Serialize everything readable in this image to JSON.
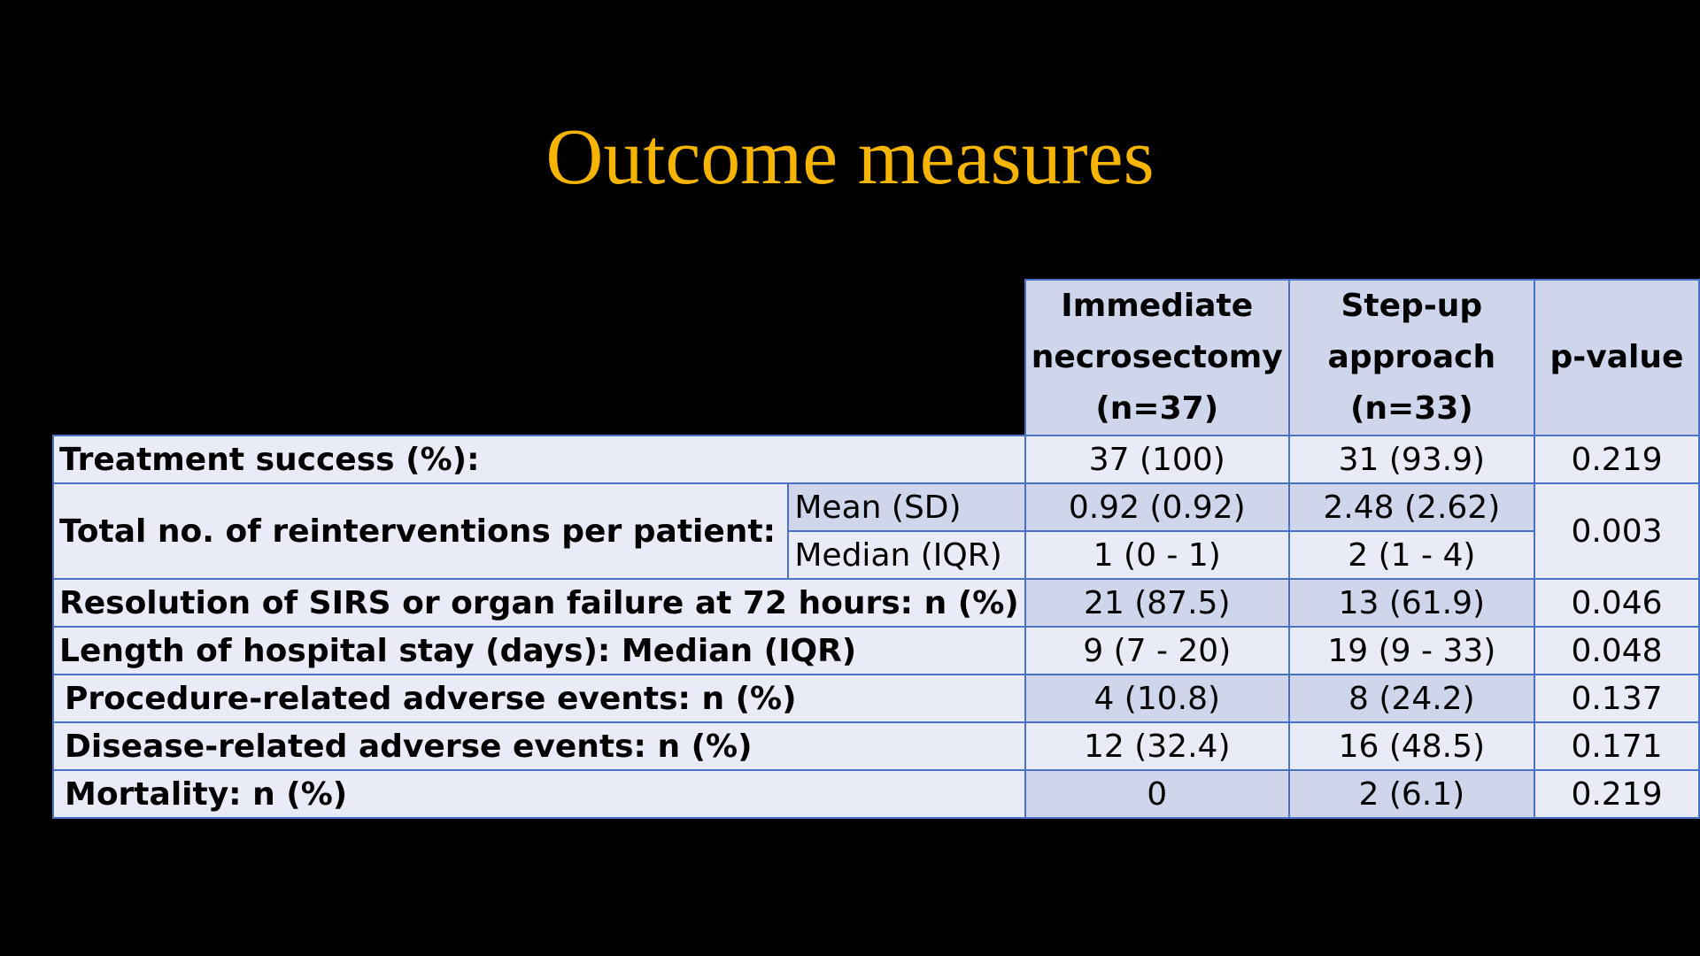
{
  "title": "Outcome measures",
  "table": {
    "headers": {
      "immediate": [
        "Immediate",
        "necrosectomy",
        "(n=37)"
      ],
      "stepup": [
        "Step-up",
        "approach",
        "(n=33)"
      ],
      "pvalue": "p-value"
    },
    "rows": {
      "treatment_success": {
        "label": "Treatment success (%):",
        "immediate": "37 (100)",
        "stepup": "31 (93.9)",
        "pvalue": "0.219"
      },
      "reinterventions": {
        "label": "Total no. of reinterventions per patient:",
        "mean_label": "Mean (SD)",
        "mean_immediate": "0.92 (0.92)",
        "mean_stepup": "2.48 (2.62)",
        "median_label": "Median (IQR)",
        "median_immediate": "1 (0 - 1)",
        "median_stepup": "2 (1 - 4)",
        "pvalue": "0.003"
      },
      "sirs": {
        "label": "Resolution of SIRS or organ failure at 72 hours: n (%)",
        "immediate": "21 (87.5)",
        "stepup": "13 (61.9)",
        "pvalue": "0.046"
      },
      "hospital_stay": {
        "label": "Length of hospital stay (days): Median (IQR)",
        "immediate": "9 (7 - 20)",
        "stepup": "19 (9 - 33)",
        "pvalue": "0.048"
      },
      "procedure_adverse": {
        "label": "Procedure-related adverse events: n (%)",
        "immediate": "4 (10.8)",
        "stepup": "8 (24.2)",
        "pvalue": "0.137"
      },
      "disease_adverse": {
        "label": "Disease-related adverse events: n (%)",
        "immediate": "12 (32.4)",
        "stepup": "16 (48.5)",
        "pvalue": "0.171"
      },
      "mortality": {
        "label": "Mortality: n (%)",
        "immediate": "0",
        "stepup": "2 (6.1)",
        "pvalue": "0.219"
      }
    }
  },
  "colors": {
    "background": "#000000",
    "title": "#f5b400",
    "header_fill": "#cfd6ec",
    "cell_fill": "#e9ecf6",
    "border": "#4a72c4"
  }
}
